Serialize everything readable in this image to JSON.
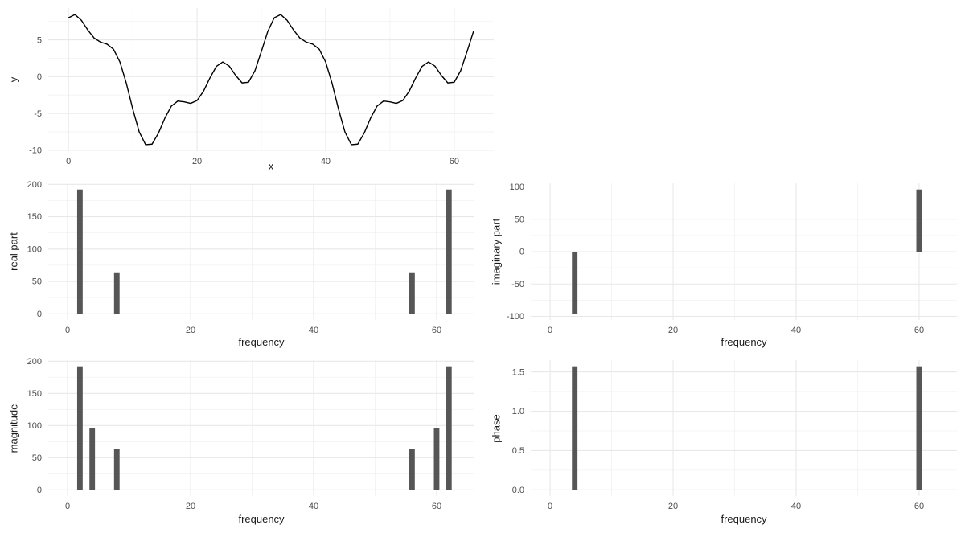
{
  "figure": {
    "description": "Fourier analysis figure: time-domain signal plus FFT real part, imaginary part, magnitude and phase spectra",
    "background": "#ffffff"
  },
  "palette": {
    "bar_fill": "#565656",
    "line_stroke": "#000000",
    "grid_major": "#e8e8e8",
    "grid_minor": "#f2f2f2",
    "tick_label_color": "#4d4d4d",
    "axis_title_color": "#1a1a1a"
  },
  "chart_data": [
    {
      "id": "signal",
      "type": "line",
      "title": "",
      "xlabel": "x",
      "ylabel": "y",
      "x_from": 0,
      "x_step": 1,
      "y": [
        8,
        8.447,
        7.665,
        6.346,
        5.243,
        4.691,
        4.417,
        3.733,
        2,
        -0.904,
        -4.417,
        -7.519,
        -9.243,
        -9.175,
        -7.665,
        -5.619,
        -4,
        -3.322,
        -3.422,
        -3.631,
        -3.243,
        -1.976,
        -0.175,
        1.392,
        2,
        1.437,
        0.175,
        -0.852,
        -0.757,
        0.803,
        3.422,
        6.151,
        8,
        8.447,
        7.665,
        6.346,
        5.243,
        4.691,
        4.417,
        3.733,
        2,
        -0.904,
        -4.417,
        -7.519,
        -9.243,
        -9.175,
        -7.665,
        -5.619,
        -4,
        -3.322,
        -3.422,
        -3.631,
        -3.243,
        -1.976,
        -0.175,
        1.392,
        2,
        1.437,
        0.175,
        -0.852,
        -0.757,
        0.803,
        3.422,
        6.151
      ],
      "xlim": [
        -3.15,
        66.15
      ],
      "ylim": [
        -10.13,
        9.33
      ],
      "x_ticks": [
        {
          "v": 0,
          "label": "0"
        },
        {
          "v": 20,
          "label": "20"
        },
        {
          "v": 40,
          "label": "40"
        },
        {
          "v": 60,
          "label": "60"
        }
      ],
      "x_minor": [
        10,
        30,
        50
      ],
      "y_ticks": [
        {
          "v": -10,
          "label": "-10"
        },
        {
          "v": -5,
          "label": "-5"
        },
        {
          "v": 0,
          "label": "0"
        },
        {
          "v": 5,
          "label": "5"
        }
      ],
      "y_minor": [
        -7.5,
        -2.5,
        2.5,
        7.5
      ],
      "grid": true,
      "legend": "none"
    },
    {
      "id": "real",
      "type": "bar",
      "title": "",
      "xlabel": "frequency",
      "ylabel": "real part",
      "bars_x": [
        2,
        8,
        56,
        62
      ],
      "bars_y": [
        192,
        64,
        64,
        192
      ],
      "bar_width": 0.9,
      "xlim": [
        -3.15,
        66.15
      ],
      "ylim": [
        -9.6,
        201.6
      ],
      "x_ticks": [
        {
          "v": 0,
          "label": "0"
        },
        {
          "v": 20,
          "label": "20"
        },
        {
          "v": 40,
          "label": "40"
        },
        {
          "v": 60,
          "label": "60"
        }
      ],
      "x_minor": [
        10,
        30,
        50
      ],
      "y_ticks": [
        {
          "v": 0,
          "label": "0"
        },
        {
          "v": 50,
          "label": "50"
        },
        {
          "v": 100,
          "label": "100"
        },
        {
          "v": 150,
          "label": "150"
        },
        {
          "v": 200,
          "label": "200"
        }
      ],
      "y_minor": [
        25,
        75,
        125,
        175
      ],
      "grid": true,
      "legend": "none"
    },
    {
      "id": "imag",
      "type": "bar",
      "title": "",
      "xlabel": "frequency",
      "ylabel": "imaginary part",
      "bars_x": [
        4,
        60
      ],
      "bars_y": [
        -96,
        96
      ],
      "bar_width": 0.9,
      "xlim": [
        -3.15,
        66.15
      ],
      "ylim": [
        -105.6,
        105.6
      ],
      "x_ticks": [
        {
          "v": 0,
          "label": "0"
        },
        {
          "v": 20,
          "label": "20"
        },
        {
          "v": 40,
          "label": "40"
        },
        {
          "v": 60,
          "label": "60"
        }
      ],
      "x_minor": [
        10,
        30,
        50
      ],
      "y_ticks": [
        {
          "v": -100,
          "label": "-100"
        },
        {
          "v": -50,
          "label": "-50"
        },
        {
          "v": 0,
          "label": "0"
        },
        {
          "v": 50,
          "label": "50"
        },
        {
          "v": 100,
          "label": "100"
        }
      ],
      "y_minor": [
        -75,
        -25,
        25,
        75
      ],
      "grid": true,
      "legend": "none"
    },
    {
      "id": "magnitude",
      "type": "bar",
      "title": "",
      "xlabel": "frequency",
      "ylabel": "magnitude",
      "bars_x": [
        2,
        4,
        8,
        56,
        60,
        62
      ],
      "bars_y": [
        192,
        96,
        64,
        64,
        96,
        192
      ],
      "bar_width": 0.9,
      "xlim": [
        -3.15,
        66.15
      ],
      "ylim": [
        -9.6,
        201.6
      ],
      "x_ticks": [
        {
          "v": 0,
          "label": "0"
        },
        {
          "v": 20,
          "label": "20"
        },
        {
          "v": 40,
          "label": "40"
        },
        {
          "v": 60,
          "label": "60"
        }
      ],
      "x_minor": [
        10,
        30,
        50
      ],
      "y_ticks": [
        {
          "v": 0,
          "label": "0"
        },
        {
          "v": 50,
          "label": "50"
        },
        {
          "v": 100,
          "label": "100"
        },
        {
          "v": 150,
          "label": "150"
        },
        {
          "v": 200,
          "label": "200"
        }
      ],
      "y_minor": [
        25,
        75,
        125,
        175
      ],
      "grid": true,
      "legend": "none"
    },
    {
      "id": "phase",
      "type": "bar",
      "title": "",
      "xlabel": "frequency",
      "ylabel": "phase",
      "bars_x": [
        4,
        60
      ],
      "bars_y": [
        1.5708,
        1.5708
      ],
      "bar_width": 0.9,
      "xlim": [
        -3.15,
        66.15
      ],
      "ylim": [
        -0.0785,
        1.6493
      ],
      "x_ticks": [
        {
          "v": 0,
          "label": "0"
        },
        {
          "v": 20,
          "label": "20"
        },
        {
          "v": 40,
          "label": "40"
        },
        {
          "v": 60,
          "label": "60"
        }
      ],
      "x_minor": [
        10,
        30,
        50
      ],
      "y_ticks": [
        {
          "v": 0,
          "label": "0.0"
        },
        {
          "v": 0.5,
          "label": "0.5"
        },
        {
          "v": 1,
          "label": "1.0"
        },
        {
          "v": 1.5,
          "label": "1.5"
        }
      ],
      "y_minor": [
        0.25,
        0.75,
        1.25
      ],
      "grid": true,
      "legend": "none"
    }
  ]
}
